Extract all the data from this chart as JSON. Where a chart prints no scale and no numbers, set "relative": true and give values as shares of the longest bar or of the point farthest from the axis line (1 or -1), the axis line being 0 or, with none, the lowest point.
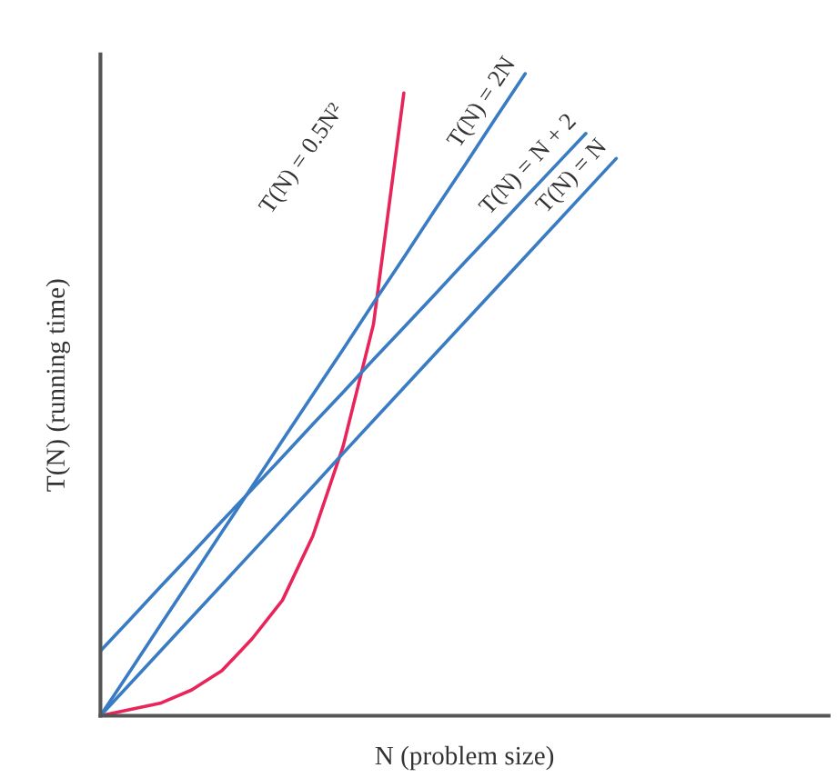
{
  "chart_data": {
    "type": "line",
    "relative": true,
    "xlabel": "N (problem size)",
    "ylabel": "T(N) (running time)",
    "categories": [
      null,
      null,
      null,
      null,
      null,
      null,
      null,
      null,
      null,
      null,
      null,
      null,
      null,
      null,
      null,
      null,
      null,
      null,
      null,
      null,
      null,
      null,
      null,
      null,
      null
    ],
    "series": [
      {
        "name": "T(N) = 0.5N²",
        "color": "#e8245a",
        "values": [
          0,
          0.01,
          0.02,
          0.04,
          0.07,
          0.12,
          0.18,
          0.28,
          0.42,
          0.61,
          0.97,
          null,
          null,
          null,
          null,
          null,
          null,
          null,
          null,
          null,
          null,
          null,
          null,
          null,
          null
        ]
      },
      {
        "name": "T(N) = 2N",
        "color": "#3a7cc4",
        "values": [
          0,
          0.071,
          0.143,
          0.214,
          0.286,
          0.357,
          0.429,
          0.5,
          0.571,
          0.643,
          0.714,
          0.786,
          0.857,
          0.929,
          1.0,
          null,
          null,
          null,
          null,
          null,
          null,
          null,
          null,
          null,
          null
        ]
      },
      {
        "name": "T(N) = N + 2",
        "color": "#3a7cc4",
        "values": [
          0.101,
          0.151,
          0.202,
          0.252,
          0.303,
          0.353,
          0.403,
          0.454,
          0.504,
          0.555,
          0.605,
          0.655,
          0.706,
          0.756,
          0.807,
          0.857,
          0.907,
          null,
          null,
          null,
          null,
          null,
          null,
          null,
          null
        ]
      },
      {
        "name": "T(N) = N",
        "color": "#3a7cc4",
        "values": [
          0,
          0.051,
          0.102,
          0.153,
          0.204,
          0.255,
          0.306,
          0.357,
          0.409,
          0.46,
          0.511,
          0.562,
          0.613,
          0.664,
          0.715,
          0.766,
          0.817,
          0.868,
          null,
          null,
          null,
          null,
          null,
          null,
          null
        ]
      }
    ],
    "legend": false
  }
}
